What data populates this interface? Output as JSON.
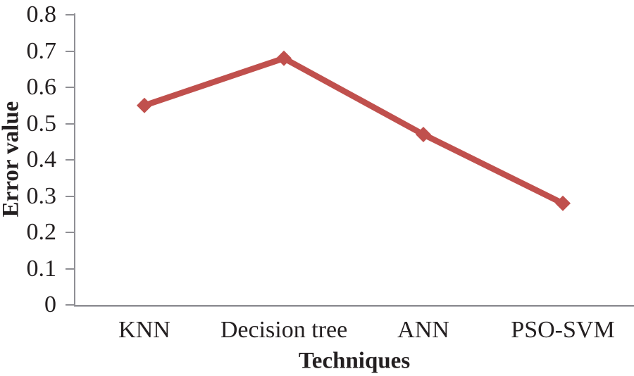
{
  "chart_data": {
    "type": "line",
    "title": "",
    "xlabel": "Techniques",
    "ylabel": "Error value",
    "categories": [
      "KNN",
      "Decision tree",
      "ANN",
      "PSO-SVM"
    ],
    "values": [
      0.55,
      0.68,
      0.47,
      0.28
    ],
    "ylim": [
      0,
      0.8
    ],
    "yticks": [
      {
        "v": 0.0,
        "label": "0"
      },
      {
        "v": 0.1,
        "label": "0.1"
      },
      {
        "v": 0.2,
        "label": "0.2"
      },
      {
        "v": 0.3,
        "label": "0.3"
      },
      {
        "v": 0.4,
        "label": "0.4"
      },
      {
        "v": 0.5,
        "label": "0.5"
      },
      {
        "v": 0.6,
        "label": "0.6"
      },
      {
        "v": 0.7,
        "label": "0.7"
      },
      {
        "v": 0.8,
        "label": "0.8"
      }
    ],
    "marker": "diamond",
    "grid": false,
    "legend": "none",
    "line_color": "#C0504D",
    "axis_color": "#8f8f94",
    "text_color": "#231f20"
  }
}
